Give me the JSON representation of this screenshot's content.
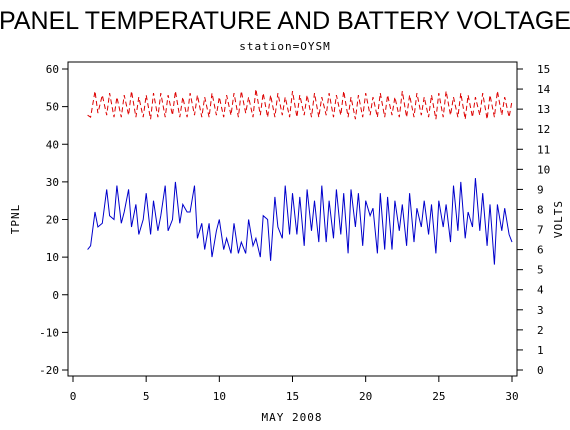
{
  "chart_data": {
    "type": "line",
    "title": "PANEL TEMPERATURE AND BATTERY VOLTAGE",
    "subtitle": "station=OYSM",
    "xlabel": "MAY 2008",
    "ylabel_left": "TPNL",
    "ylabel_right": "VOLTS",
    "xlim": [
      0,
      30
    ],
    "ylim_left": [
      -20,
      60
    ],
    "ylim_right": [
      0,
      15
    ],
    "x_ticks": [
      0,
      5,
      10,
      15,
      20,
      25,
      30
    ],
    "y_ticks_left": [
      -20,
      -10,
      0,
      10,
      20,
      30,
      40,
      50,
      60
    ],
    "y_ticks_right": [
      0,
      1,
      2,
      3,
      4,
      5,
      6,
      7,
      8,
      9,
      10,
      11,
      12,
      13,
      14,
      15
    ],
    "grid": false,
    "series": [
      {
        "name": "TPNL",
        "axis": "left",
        "color": "#0000cc",
        "style": "solid",
        "x": [
          1.0,
          1.2,
          1.5,
          1.7,
          2.0,
          2.3,
          2.5,
          2.8,
          3.0,
          3.3,
          3.5,
          3.8,
          4.0,
          4.3,
          4.5,
          4.8,
          5.0,
          5.3,
          5.5,
          5.8,
          6.0,
          6.3,
          6.5,
          6.8,
          7.0,
          7.3,
          7.5,
          7.8,
          8.0,
          8.3,
          8.5,
          8.8,
          9.0,
          9.3,
          9.5,
          9.8,
          10.0,
          10.3,
          10.5,
          10.8,
          11.0,
          11.3,
          11.5,
          11.8,
          12.0,
          12.3,
          12.5,
          12.8,
          13.0,
          13.3,
          13.5,
          13.8,
          14.0,
          14.3,
          14.5,
          14.8,
          15.0,
          15.3,
          15.5,
          15.8,
          16.0,
          16.3,
          16.5,
          16.8,
          17.0,
          17.3,
          17.5,
          17.8,
          18.0,
          18.3,
          18.5,
          18.8,
          19.0,
          19.3,
          19.5,
          19.8,
          20.0,
          20.3,
          20.5,
          20.8,
          21.0,
          21.3,
          21.5,
          21.8,
          22.0,
          22.3,
          22.5,
          22.8,
          23.0,
          23.3,
          23.5,
          23.8,
          24.0,
          24.3,
          24.5,
          24.8,
          25.0,
          25.3,
          25.5,
          25.8,
          26.0,
          26.3,
          26.5,
          26.8,
          27.0,
          27.3,
          27.5,
          27.8,
          28.0,
          28.3,
          28.5,
          28.8,
          29.0,
          29.3,
          29.5,
          29.8,
          30.0
        ],
        "values": [
          12,
          13,
          22,
          18,
          19,
          28,
          21,
          20,
          29,
          19,
          22,
          28,
          18,
          24,
          16,
          20,
          27,
          16,
          25,
          17,
          21,
          29,
          17,
          20,
          30,
          19,
          24,
          22,
          22,
          29,
          15,
          19,
          12,
          19,
          10,
          17,
          20,
          12,
          15,
          11,
          19,
          11,
          14,
          11,
          20,
          13,
          15,
          10,
          21,
          20,
          9,
          26,
          18,
          15,
          29,
          16,
          27,
          16,
          26,
          13,
          28,
          17,
          25,
          14,
          29,
          14,
          25,
          15,
          28,
          16,
          27,
          11,
          28,
          18,
          27,
          13,
          25,
          21,
          23,
          11,
          27,
          12,
          26,
          12,
          25,
          17,
          24,
          13,
          27,
          14,
          23,
          18,
          25,
          16,
          24,
          11,
          25,
          18,
          24,
          14,
          29,
          17,
          30,
          15,
          22,
          18,
          31,
          17,
          27,
          13,
          24,
          8,
          24,
          17,
          23,
          16,
          14
        ]
      },
      {
        "name": "VOLTS",
        "axis": "right",
        "color": "#dd0000",
        "style": "dashed",
        "x": [
          1.0,
          1.2,
          1.5,
          1.7,
          2.0,
          2.3,
          2.5,
          2.8,
          3.0,
          3.3,
          3.5,
          3.8,
          4.0,
          4.3,
          4.5,
          4.8,
          5.0,
          5.3,
          5.5,
          5.8,
          6.0,
          6.3,
          6.5,
          6.8,
          7.0,
          7.3,
          7.5,
          7.8,
          8.0,
          8.3,
          8.5,
          8.8,
          9.0,
          9.3,
          9.5,
          9.8,
          10.0,
          10.3,
          10.5,
          10.8,
          11.0,
          11.3,
          11.5,
          11.8,
          12.0,
          12.3,
          12.5,
          12.8,
          13.0,
          13.3,
          13.5,
          13.8,
          14.0,
          14.3,
          14.5,
          14.8,
          15.0,
          15.3,
          15.5,
          15.8,
          16.0,
          16.3,
          16.5,
          16.8,
          17.0,
          17.3,
          17.5,
          17.8,
          18.0,
          18.3,
          18.5,
          18.8,
          19.0,
          19.3,
          19.5,
          19.8,
          20.0,
          20.3,
          20.5,
          20.8,
          21.0,
          21.3,
          21.5,
          21.8,
          22.0,
          22.3,
          22.5,
          22.8,
          23.0,
          23.3,
          23.5,
          23.8,
          24.0,
          24.3,
          24.5,
          24.8,
          25.0,
          25.3,
          25.5,
          25.8,
          26.0,
          26.3,
          26.5,
          26.8,
          27.0,
          27.3,
          27.5,
          27.8,
          28.0,
          28.3,
          28.5,
          28.8,
          29.0,
          29.3,
          29.5,
          29.8,
          30.0
        ],
        "values": [
          12.7,
          12.6,
          13.9,
          12.8,
          13.7,
          12.7,
          13.8,
          12.6,
          13.6,
          12.6,
          13.7,
          12.7,
          13.9,
          12.6,
          13.6,
          12.6,
          13.7,
          12.5,
          13.8,
          12.6,
          13.8,
          12.6,
          13.7,
          12.7,
          13.9,
          12.6,
          13.6,
          12.6,
          13.8,
          12.7,
          13.7,
          12.6,
          13.6,
          12.6,
          13.8,
          12.7,
          13.6,
          12.6,
          13.7,
          12.7,
          13.8,
          12.6,
          13.9,
          12.8,
          13.6,
          12.6,
          14.0,
          12.7,
          13.8,
          12.6,
          13.7,
          12.6,
          13.8,
          12.7,
          13.6,
          12.6,
          13.9,
          12.6,
          13.7,
          12.7,
          13.7,
          12.6,
          13.8,
          12.6,
          13.6,
          12.7,
          13.8,
          12.6,
          13.7,
          12.7,
          13.9,
          12.6,
          13.6,
          12.5,
          13.7,
          12.6,
          13.8,
          12.7,
          13.6,
          12.6,
          13.8,
          12.6,
          13.7,
          12.7,
          13.6,
          12.6,
          13.9,
          12.6,
          13.7,
          12.6,
          13.8,
          12.7,
          13.6,
          12.6,
          13.7,
          12.5,
          13.8,
          12.6,
          13.9,
          12.7,
          13.6,
          12.6,
          13.8,
          12.5,
          13.7,
          12.6,
          13.6,
          12.7,
          13.8,
          12.5,
          13.7,
          12.6,
          13.9,
          12.7,
          13.6,
          12.6,
          13.4
        ]
      }
    ]
  }
}
